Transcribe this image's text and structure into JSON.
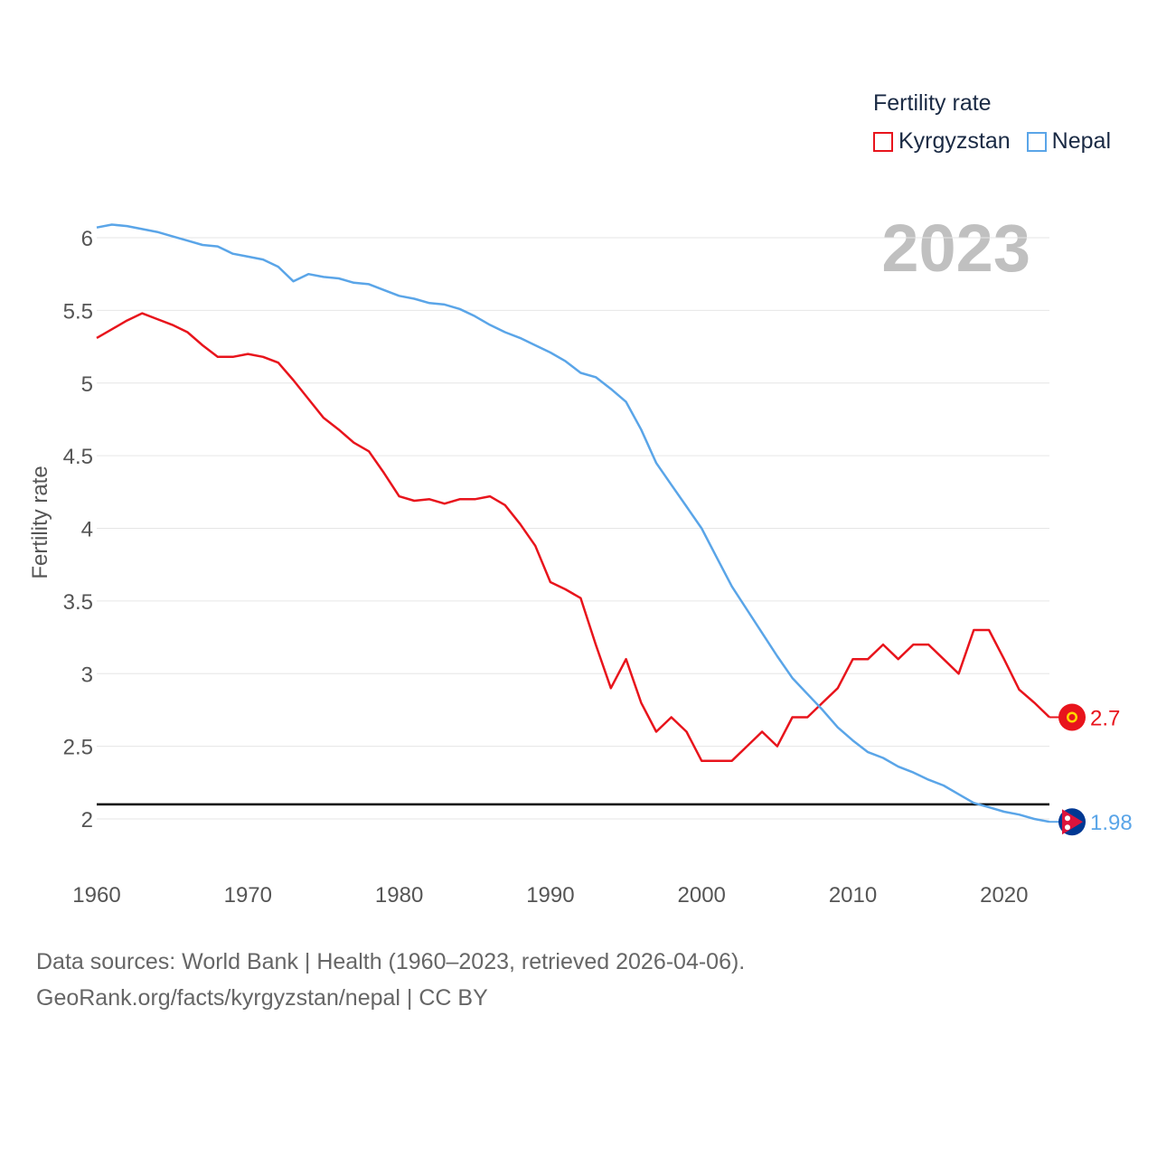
{
  "chart_data": {
    "type": "line",
    "title": "Fertility rate",
    "year_label": "2023",
    "xlabel": "",
    "ylabel": "Fertility rate",
    "xlim": [
      1960,
      2023
    ],
    "ylim": [
      1.6,
      6.3
    ],
    "x_ticks": [
      1960,
      1970,
      1980,
      1990,
      2000,
      2010,
      2020
    ],
    "y_ticks": [
      2,
      2.5,
      3,
      3.5,
      4,
      4.5,
      5,
      5.5,
      6
    ],
    "reference_line": 2.1,
    "legend_position": "top-right",
    "x": [
      1960,
      1961,
      1962,
      1963,
      1964,
      1965,
      1966,
      1967,
      1968,
      1969,
      1970,
      1971,
      1972,
      1973,
      1974,
      1975,
      1976,
      1977,
      1978,
      1979,
      1980,
      1981,
      1982,
      1983,
      1984,
      1985,
      1986,
      1987,
      1988,
      1989,
      1990,
      1991,
      1992,
      1993,
      1994,
      1995,
      1996,
      1997,
      1998,
      1999,
      2000,
      2001,
      2002,
      2003,
      2004,
      2005,
      2006,
      2007,
      2008,
      2009,
      2010,
      2011,
      2012,
      2013,
      2014,
      2015,
      2016,
      2017,
      2018,
      2019,
      2020,
      2021,
      2022,
      2023
    ],
    "series": [
      {
        "name": "Kyrgyzstan",
        "color": "#e8141c",
        "end_label": "2.7",
        "values": [
          5.31,
          5.37,
          5.43,
          5.48,
          5.44,
          5.4,
          5.35,
          5.26,
          5.18,
          5.18,
          5.2,
          5.18,
          5.14,
          5.02,
          4.89,
          4.76,
          4.68,
          4.59,
          4.53,
          4.38,
          4.22,
          4.19,
          4.2,
          4.17,
          4.2,
          4.2,
          4.22,
          4.16,
          4.03,
          3.88,
          3.63,
          3.58,
          3.52,
          3.2,
          2.9,
          3.1,
          2.8,
          2.6,
          2.7,
          2.6,
          2.4,
          2.4,
          2.4,
          2.5,
          2.6,
          2.5,
          2.7,
          2.7,
          2.8,
          2.9,
          3.1,
          3.1,
          3.2,
          3.1,
          3.2,
          3.2,
          3.1,
          3.0,
          3.3,
          3.3,
          3.1,
          2.89,
          2.8,
          2.7
        ]
      },
      {
        "name": "Nepal",
        "color": "#5aa5e8",
        "end_label": "1.98",
        "values": [
          6.07,
          6.09,
          6.08,
          6.06,
          6.04,
          6.01,
          5.98,
          5.95,
          5.94,
          5.89,
          5.87,
          5.85,
          5.8,
          5.7,
          5.75,
          5.73,
          5.72,
          5.69,
          5.68,
          5.64,
          5.6,
          5.58,
          5.55,
          5.54,
          5.51,
          5.46,
          5.4,
          5.35,
          5.31,
          5.26,
          5.21,
          5.15,
          5.07,
          5.04,
          4.96,
          4.87,
          4.68,
          4.45,
          4.3,
          4.15,
          4.0,
          3.8,
          3.6,
          3.44,
          3.28,
          3.12,
          2.97,
          2.86,
          2.75,
          2.63,
          2.54,
          2.46,
          2.42,
          2.36,
          2.32,
          2.27,
          2.23,
          2.17,
          2.11,
          2.08,
          2.05,
          2.03,
          2.0,
          1.98
        ]
      }
    ]
  },
  "footer": {
    "line1": "Data sources: World Bank | Health (1960–2023, retrieved 2026-04-06).",
    "line2": "GeoRank.org/facts/kyrgyzstan/nepal | CC BY"
  },
  "colors": {
    "grid": "#e6e6e6",
    "axis_text": "#555555",
    "year_watermark": "#c0c0c0"
  }
}
